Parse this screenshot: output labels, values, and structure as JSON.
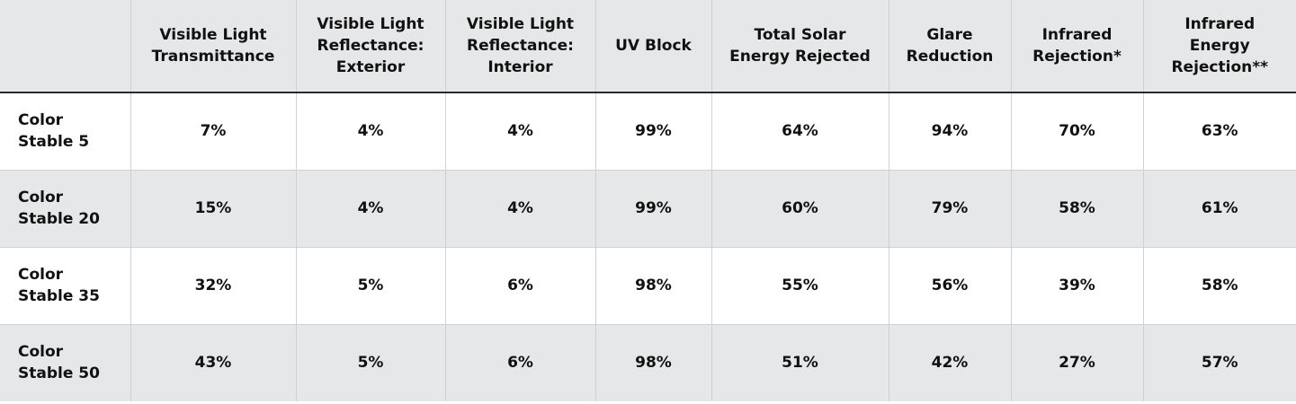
{
  "table": {
    "header": [
      "Visible Light Transmittance",
      "Visible Light Reflectance: Exterior",
      "Visible Light Reflectance: Interior",
      "UV Block",
      "Total Solar Energy Rejected",
      "Glare Reduction",
      "Infrared Rejection*",
      "Infrared Energy Rejection**"
    ],
    "rows": [
      [
        "Color Stable 5",
        "7%",
        "4%",
        "4%",
        "99%",
        "64%",
        "94%",
        "70%",
        "63%"
      ],
      [
        "Color Stable 20",
        "15%",
        "4%",
        "4%",
        "99%",
        "60%",
        "79%",
        "58%",
        "61%"
      ],
      [
        "Color Stable 35",
        "32%",
        "5%",
        "6%",
        "98%",
        "55%",
        "56%",
        "39%",
        "58%"
      ],
      [
        "Color Stable 50",
        "43%",
        "5%",
        "6%",
        "98%",
        "51%",
        "42%",
        "27%",
        "57%"
      ]
    ]
  }
}
